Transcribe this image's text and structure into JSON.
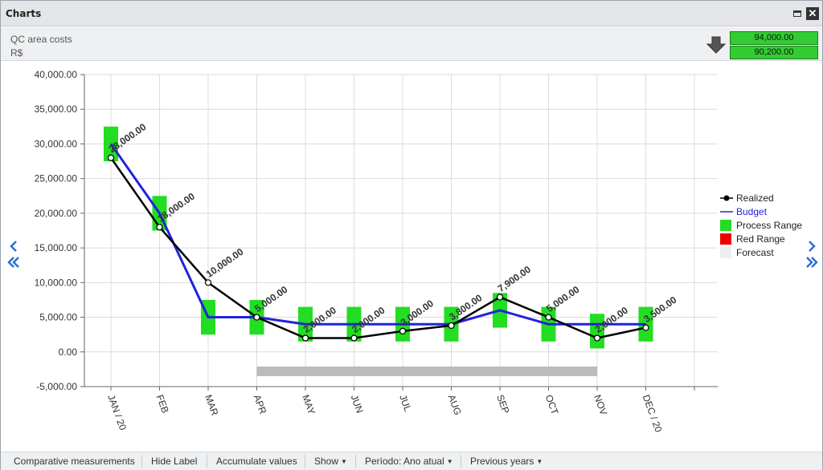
{
  "window": {
    "title": "Charts"
  },
  "header": {
    "title": "QC area costs",
    "unit": "R$",
    "totals": [
      "94,000.00",
      "90,200.00"
    ],
    "arrow_icon": "down-arrow-icon"
  },
  "footer": {
    "buttons": {
      "comparative": "Comparative measurements",
      "hide_label": "Hide Label",
      "accumulate": "Accumulate values",
      "show": "Show",
      "period": "Período: Ano atual",
      "previous_years": "Previous years"
    }
  },
  "nav": {
    "prev_icon": "chevron-left-icon",
    "next_icon": "chevron-right-icon"
  },
  "colors": {
    "realized": "#000000",
    "budget": "#2222dd",
    "process_range": "#22dd22",
    "red_range": "#ee0000",
    "forecast": "#eeeeee",
    "forecast_bar": "#bbbbbb",
    "total_box": "#33cc33"
  },
  "chart_data": {
    "type": "line",
    "categories": [
      "JAN / 20",
      "FEB",
      "MAR",
      "APR",
      "MAY",
      "JUN",
      "JUL",
      "AUG",
      "SEP",
      "OCT",
      "NOV",
      "DEC / 20"
    ],
    "ylim": [
      -5000,
      40000
    ],
    "yticks": [
      -5000,
      0,
      5000,
      10000,
      15000,
      20000,
      25000,
      30000,
      35000,
      40000
    ],
    "ytick_labels": [
      "-5,000.00",
      "0.00",
      "5,000.00",
      "10,000.00",
      "15,000.00",
      "20,000.00",
      "25,000.00",
      "30,000.00",
      "35,000.00",
      "40,000.00"
    ],
    "grid": true,
    "legend_position": "right",
    "series": [
      {
        "name": "Realized",
        "type": "line",
        "values": [
          28000,
          18000,
          10000,
          5000,
          2000,
          2000,
          3000,
          3800,
          7900,
          5000,
          2000,
          3500
        ],
        "labels": [
          "28,000.00",
          "18,000.00",
          "10,000.00",
          "5,000.00",
          "2,000.00",
          "2,000.00",
          "3,000.00",
          "3,800.00",
          "7,900.00",
          "5,000.00",
          "2,000.00",
          "3,500.00"
        ]
      },
      {
        "name": "Budget",
        "type": "line",
        "values": [
          30000,
          20000,
          5000,
          5000,
          4000,
          4000,
          4000,
          4000,
          6000,
          4000,
          4000,
          4000
        ]
      },
      {
        "name": "Process Range",
        "type": "range",
        "low": [
          27500,
          17500,
          2500,
          2500,
          1500,
          1500,
          1500,
          1500,
          3500,
          1500,
          500,
          1500
        ],
        "high": [
          32500,
          22500,
          7500,
          7500,
          6500,
          6500,
          6500,
          6500,
          8500,
          6500,
          5500,
          6500
        ]
      },
      {
        "name": "Red Range",
        "type": "range"
      },
      {
        "name": "Forecast",
        "type": "bar",
        "from_category": "APR",
        "to_category": "NOV",
        "value": -2800
      }
    ]
  }
}
